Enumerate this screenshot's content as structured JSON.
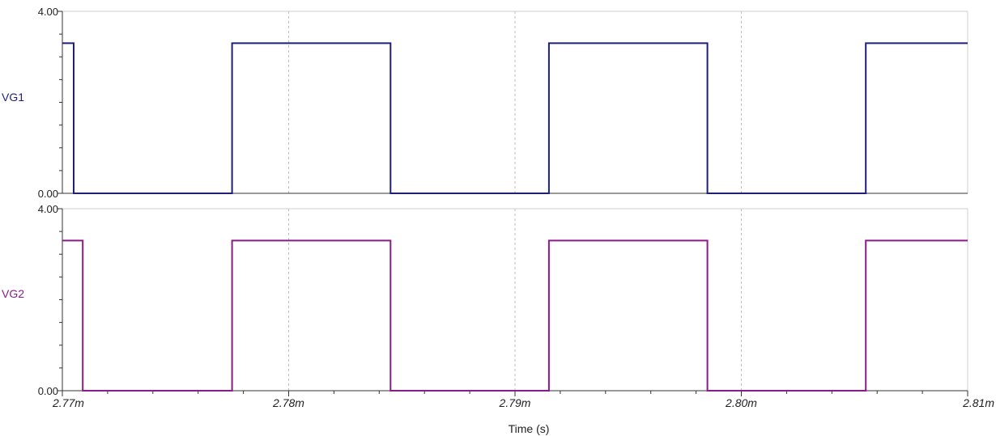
{
  "chart_data": {
    "type": "line",
    "x": {
      "label": "Time (s)",
      "range": [
        2.77,
        2.81
      ],
      "unit_suffix": "m",
      "ticks": [
        2.77,
        2.78,
        2.79,
        2.8,
        2.81
      ],
      "tick_labels": [
        "2.77m",
        "2.78m",
        "2.79m",
        "2.80m",
        "2.81m"
      ],
      "minor_divisions": 5,
      "grid": "dashed vertical at major ticks"
    },
    "panels": [
      {
        "name": "VG1",
        "color": "#1f1f7a",
        "ylim": [
          0,
          4
        ],
        "ytick_labels": [
          "4.00",
          "0.00"
        ],
        "points": [
          [
            2.77,
            3.3
          ],
          [
            2.7705,
            3.3
          ],
          [
            2.7705,
            0
          ],
          [
            2.7775,
            0
          ],
          [
            2.7775,
            3.3
          ],
          [
            2.7845,
            3.3
          ],
          [
            2.7845,
            0
          ],
          [
            2.7915,
            0
          ],
          [
            2.7915,
            3.3
          ],
          [
            2.7985,
            3.3
          ],
          [
            2.7985,
            0
          ],
          [
            2.8055,
            0
          ],
          [
            2.8055,
            3.3
          ],
          [
            2.81,
            3.3
          ]
        ]
      },
      {
        "name": "VG2",
        "color": "#8b1a8b",
        "ylim": [
          0,
          4
        ],
        "ytick_labels": [
          "4.00",
          "0.00"
        ],
        "points": [
          [
            2.77,
            3.3
          ],
          [
            2.7709,
            3.3
          ],
          [
            2.7709,
            0
          ],
          [
            2.7775,
            0
          ],
          [
            2.7775,
            3.3
          ],
          [
            2.7845,
            3.3
          ],
          [
            2.7845,
            0
          ],
          [
            2.7915,
            0
          ],
          [
            2.7915,
            3.3
          ],
          [
            2.7985,
            3.3
          ],
          [
            2.7985,
            0
          ],
          [
            2.8055,
            0
          ],
          [
            2.8055,
            3.3
          ],
          [
            2.81,
            3.3
          ]
        ]
      }
    ]
  }
}
